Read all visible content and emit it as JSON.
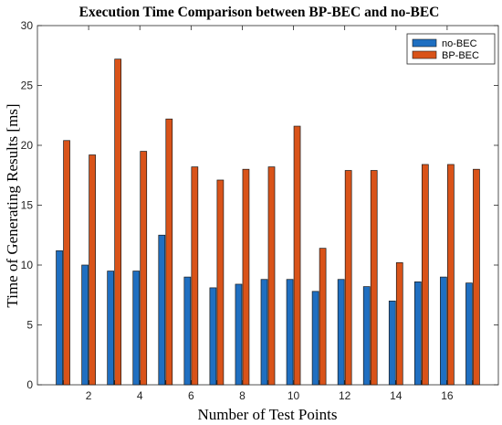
{
  "chart_data": {
    "type": "bar",
    "title": "Execution Time Comparison between BP-BEC and no-BEC",
    "xlabel": "Number of Test Points",
    "ylabel": "Time of Generating Results [ms]",
    "x": [
      1,
      2,
      3,
      4,
      5,
      6,
      7,
      8,
      9,
      10,
      11,
      12,
      13,
      14,
      15,
      16,
      17
    ],
    "xticks": [
      2,
      4,
      6,
      8,
      10,
      12,
      14,
      16
    ],
    "xlim": [
      0,
      18
    ],
    "ylim": [
      0,
      30
    ],
    "yticks": [
      0,
      5,
      10,
      15,
      20,
      25,
      30
    ],
    "grid": false,
    "legend_position": "top-right",
    "series": [
      {
        "name": "no-BEC",
        "color": "#1f6fc1",
        "values": [
          11.2,
          10.0,
          9.5,
          9.5,
          12.5,
          9.0,
          8.1,
          8.4,
          8.8,
          8.8,
          7.8,
          8.8,
          8.2,
          7.0,
          8.6,
          9.0,
          8.5
        ]
      },
      {
        "name": "BP-BEC",
        "color": "#d95319",
        "values": [
          20.4,
          19.2,
          27.2,
          19.5,
          22.2,
          18.2,
          17.1,
          18.0,
          18.2,
          21.6,
          11.4,
          17.9,
          17.9,
          10.2,
          18.4,
          18.4,
          18.0
        ]
      }
    ]
  }
}
